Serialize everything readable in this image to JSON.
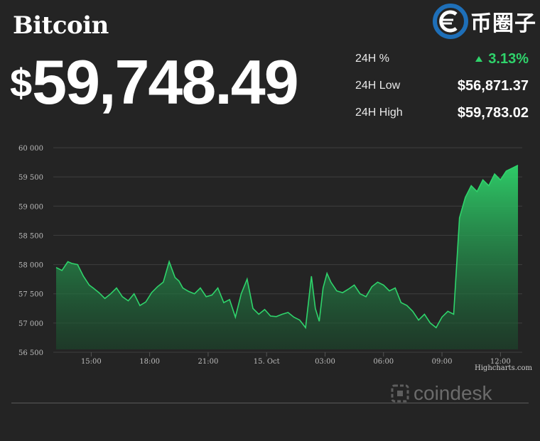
{
  "header": {
    "title": "Bitcoin",
    "currency_symbol": "$",
    "price": "59,748.49"
  },
  "stats": [
    {
      "label": "24H %",
      "value": "3.13%",
      "trend": "up"
    },
    {
      "label": "24H Low",
      "value": "$56,871.37"
    },
    {
      "label": "24H High",
      "value": "$59,783.02"
    }
  ],
  "watermark": {
    "text": "币圈子",
    "icon": "coin-circle-logo"
  },
  "brand": {
    "name": "coindesk",
    "icon": "coindesk-logo",
    "color": "#6b6b6b"
  },
  "credit": "Highcharts.com",
  "colors": {
    "background": "#242424",
    "line": "#2fd36b",
    "up": "#2fd36b"
  },
  "chart_data": {
    "type": "area",
    "title": "",
    "xlabel": "",
    "ylabel": "",
    "ylim": [
      56500,
      60000
    ],
    "y_ticks": [
      56500,
      57000,
      57500,
      58000,
      58500,
      59000,
      59500,
      60000
    ],
    "y_tick_labels": [
      "56 500",
      "57 000",
      "57 500",
      "58 000",
      "58 500",
      "59 000",
      "59 500",
      "60 000"
    ],
    "x_ticks": [
      {
        "label": "15:00",
        "t": 15
      },
      {
        "label": "18:00",
        "t": 18
      },
      {
        "label": "21:00",
        "t": 21
      },
      {
        "label": "15. Oct",
        "t": 24
      },
      {
        "label": "03:00",
        "t": 27
      },
      {
        "label": "06:00",
        "t": 30
      },
      {
        "label": "09:00",
        "t": 33
      },
      {
        "label": "12:00",
        "t": 36
      }
    ],
    "x_range": [
      13.2,
      36.9
    ],
    "grid": true,
    "series": [
      {
        "x": [
          13.2,
          13.5,
          13.8,
          14.0,
          14.3,
          14.6,
          14.9,
          15.1,
          15.4,
          15.7,
          16.0,
          16.3,
          16.6,
          16.9,
          17.2,
          17.5,
          17.8,
          18.1,
          18.4,
          18.7,
          19.0,
          19.3,
          19.5,
          19.7,
          20.0,
          20.3,
          20.6,
          20.9,
          21.2,
          21.5,
          21.8,
          22.1,
          22.4,
          22.7,
          23.0,
          23.3,
          23.6,
          23.9,
          24.2,
          24.5,
          24.8,
          25.1,
          25.4,
          25.7,
          26.0,
          26.3,
          26.5,
          26.7,
          26.9,
          27.1,
          27.3,
          27.6,
          27.9,
          28.2,
          28.5,
          28.8,
          29.1,
          29.4,
          29.7,
          30.0,
          30.3,
          30.6,
          30.9,
          31.2,
          31.5,
          31.8,
          32.1,
          32.4,
          32.7,
          33.0,
          33.3,
          33.6,
          33.9,
          34.2,
          34.5,
          34.8,
          35.1,
          35.4,
          35.7,
          36.0,
          36.3,
          36.6,
          36.9
        ],
        "values": [
          57950,
          57900,
          58050,
          58020,
          58000,
          57800,
          57650,
          57600,
          57520,
          57420,
          57500,
          57600,
          57450,
          57380,
          57500,
          57300,
          57360,
          57520,
          57620,
          57700,
          58050,
          57780,
          57720,
          57600,
          57540,
          57500,
          57600,
          57450,
          57480,
          57600,
          57350,
          57400,
          57100,
          57500,
          57750,
          57250,
          57150,
          57230,
          57120,
          57110,
          57150,
          57180,
          57100,
          57050,
          56920,
          57800,
          57250,
          57030,
          57600,
          57850,
          57700,
          57550,
          57520,
          57580,
          57650,
          57500,
          57450,
          57620,
          57700,
          57650,
          57550,
          57600,
          57350,
          57300,
          57200,
          57050,
          57150,
          57000,
          56920,
          57100,
          57200,
          57150,
          58800,
          59150,
          59350,
          59250,
          59450,
          59350,
          59550,
          59450,
          59600,
          59650,
          59700
        ]
      }
    ]
  }
}
